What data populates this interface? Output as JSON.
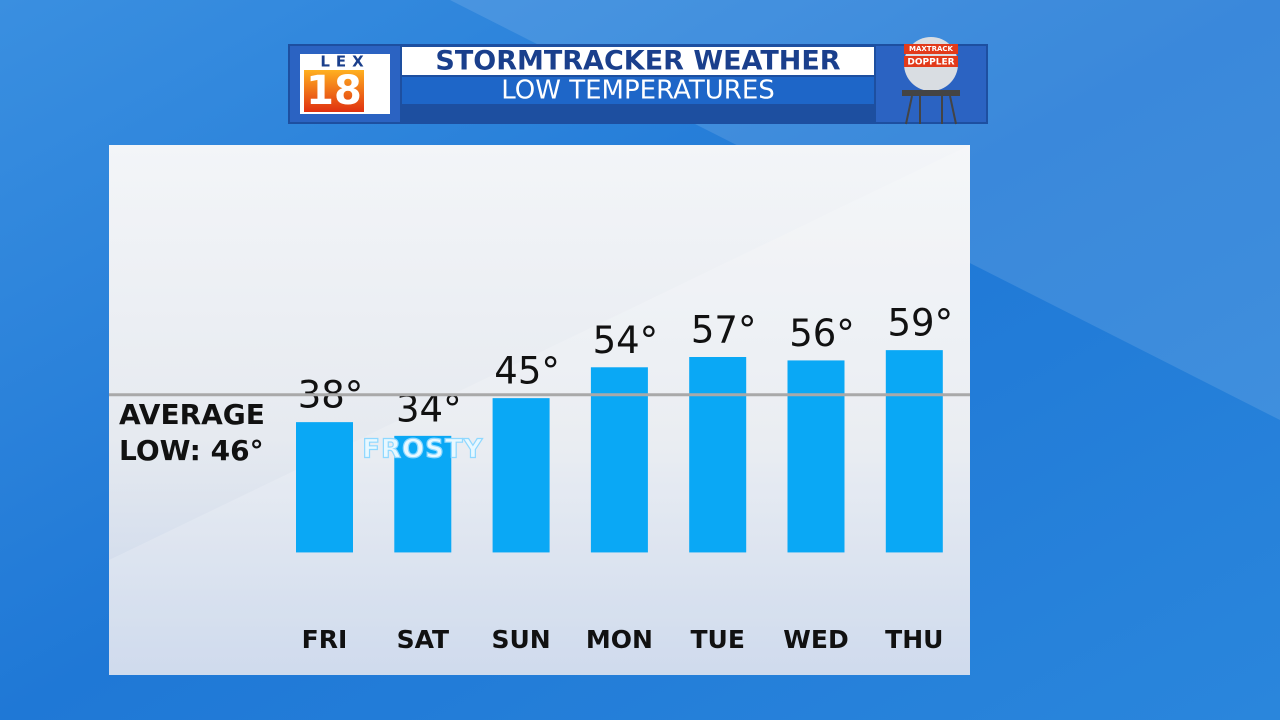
{
  "header": {
    "logo_top": "LEX",
    "logo_number": "18",
    "title": "STORMTRACKER WEATHER",
    "subtitle": "LOW TEMPERATURES",
    "badge_top": "MAXTRACK",
    "badge_bottom": "DOPPLER"
  },
  "chart_data": {
    "type": "bar",
    "categories": [
      "FRI",
      "SAT",
      "SUN",
      "MON",
      "TUE",
      "WED",
      "THU"
    ],
    "values": [
      38,
      34,
      45,
      54,
      57,
      56,
      59
    ],
    "value_labels": [
      "38°",
      "34°",
      "45°",
      "54°",
      "57°",
      "56°",
      "59°"
    ],
    "color": "#0aa8f5",
    "ylim": [
      -20,
      120
    ],
    "reference_line": {
      "value": 46,
      "label_lines": [
        "AVERAGE",
        "LOW: 46°"
      ],
      "color": "#a9a9a9"
    },
    "annotations": [
      {
        "text": "FROSTY",
        "category": "SAT"
      }
    ]
  }
}
